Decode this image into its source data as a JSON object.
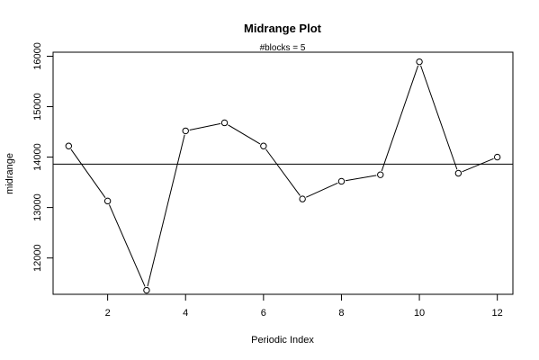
{
  "chart_data": {
    "type": "line",
    "title": "Midrange Plot",
    "subtitle": "#blocks =  5",
    "xlabel": "Periodic Index",
    "ylabel": "midrange",
    "x": [
      1,
      2,
      3,
      4,
      5,
      6,
      7,
      8,
      9,
      10,
      11,
      12
    ],
    "series": [
      {
        "values": [
          14220,
          13130,
          11360,
          14520,
          14680,
          14220,
          13170,
          13520,
          13650,
          15890,
          13680,
          14000
        ]
      }
    ],
    "reference_line": 13860,
    "xlim": [
      0.6,
      12.4
    ],
    "ylim": [
      11280,
      16080
    ],
    "x_ticks": [
      "2",
      "4",
      "6",
      "8",
      "10",
      "12"
    ],
    "y_ticks": [
      "12000",
      "13000",
      "14000",
      "15000",
      "16000"
    ],
    "markers": "open-circle",
    "grid": false,
    "legend": "none"
  }
}
